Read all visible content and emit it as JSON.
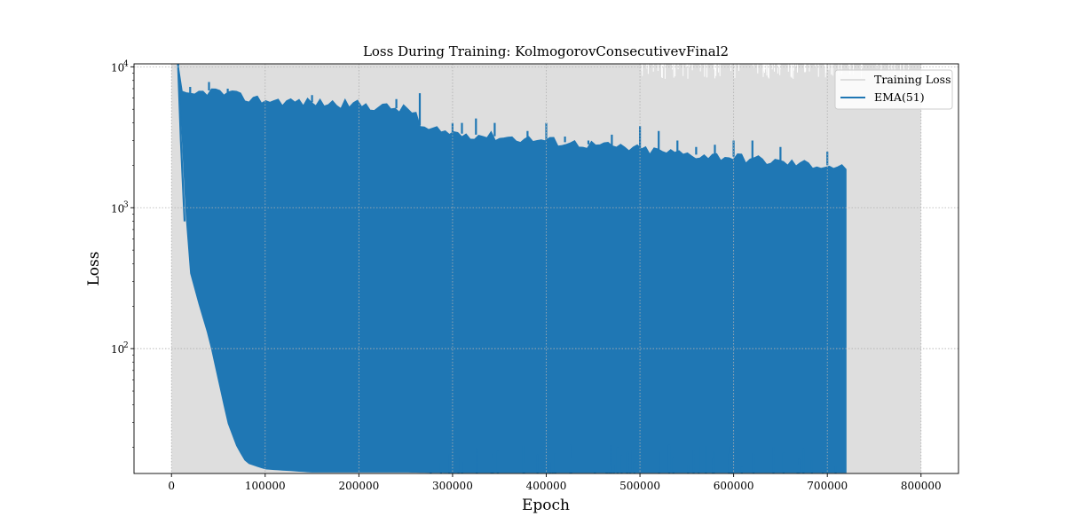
{
  "chart_data": {
    "type": "line",
    "title": "Loss During Training: KolmogorovConsecutivevFinal2",
    "xlabel": "Epoch",
    "ylabel": "Loss",
    "xlim": [
      -40000,
      840000
    ],
    "ylim": [
      13,
      10500
    ],
    "yscale": "log",
    "grid": true,
    "legend_position": "top-right",
    "x_ticks": [
      0,
      100000,
      200000,
      300000,
      400000,
      500000,
      600000,
      700000,
      800000
    ],
    "x_tick_labels": [
      "0",
      "100000",
      "200000",
      "300000",
      "400000",
      "500000",
      "600000",
      "700000",
      "800000"
    ],
    "y_ticks": [
      100,
      1000,
      10000
    ],
    "y_tick_labels": [
      {
        "base": "10",
        "exp": "2"
      },
      {
        "base": "10",
        "exp": "3"
      },
      {
        "base": "10",
        "exp": "4"
      }
    ],
    "series": [
      {
        "name": "Training Loss",
        "color": "#dedede",
        "style": "dense-band",
        "x_range": [
          0,
          800000
        ],
        "upper": [
          [
            0,
            10500
          ],
          [
            800000,
            10500
          ]
        ],
        "lower": [
          [
            0,
            13
          ],
          [
            800000,
            13
          ]
        ]
      },
      {
        "name": "EMA(51)",
        "color": "#1f77b4",
        "style": "dense-band",
        "x_range": [
          7000,
          720000
        ],
        "upper": [
          [
            7000,
            10500
          ],
          [
            12000,
            6000
          ],
          [
            20000,
            6200
          ],
          [
            30000,
            6500
          ],
          [
            40000,
            6800
          ],
          [
            60000,
            6400
          ],
          [
            80000,
            6000
          ],
          [
            100000,
            5800
          ],
          [
            150000,
            5600
          ],
          [
            200000,
            5400
          ],
          [
            250000,
            5000
          ],
          [
            262000,
            4700
          ],
          [
            266000,
            3600
          ],
          [
            300000,
            3400
          ],
          [
            350000,
            3200
          ],
          [
            400000,
            3000
          ],
          [
            450000,
            2800
          ],
          [
            500000,
            2600
          ],
          [
            550000,
            2400
          ],
          [
            600000,
            2300
          ],
          [
            650000,
            2100
          ],
          [
            700000,
            2000
          ],
          [
            720000,
            1900
          ]
        ],
        "spikes": [
          [
            20000,
            7200
          ],
          [
            40000,
            7800
          ],
          [
            60000,
            7000
          ],
          [
            150000,
            6300
          ],
          [
            240000,
            5900
          ],
          [
            265000,
            6500
          ],
          [
            300000,
            4000
          ],
          [
            310000,
            4000
          ],
          [
            325000,
            4300
          ],
          [
            345000,
            4000
          ],
          [
            380000,
            3500
          ],
          [
            400000,
            4000
          ],
          [
            420000,
            3200
          ],
          [
            445000,
            3000
          ],
          [
            470000,
            3300
          ],
          [
            500000,
            3800
          ],
          [
            520000,
            3500
          ],
          [
            540000,
            3000
          ],
          [
            560000,
            2700
          ],
          [
            580000,
            2800
          ],
          [
            600000,
            3000
          ],
          [
            620000,
            3000
          ],
          [
            650000,
            2700
          ],
          [
            700000,
            2500
          ]
        ],
        "lower": [
          [
            7000,
            10500
          ],
          [
            10000,
            5000
          ],
          [
            15000,
            1000
          ],
          [
            20000,
            350
          ],
          [
            30000,
            200
          ],
          [
            40000,
            120
          ],
          [
            50000,
            60
          ],
          [
            60000,
            30
          ],
          [
            70000,
            20
          ],
          [
            80000,
            15.5
          ],
          [
            100000,
            14
          ],
          [
            150000,
            13.3
          ],
          [
            250000,
            13.3
          ],
          [
            300000,
            13.2
          ],
          [
            720000,
            13.2
          ]
        ],
        "end_value": 1300
      }
    ]
  }
}
